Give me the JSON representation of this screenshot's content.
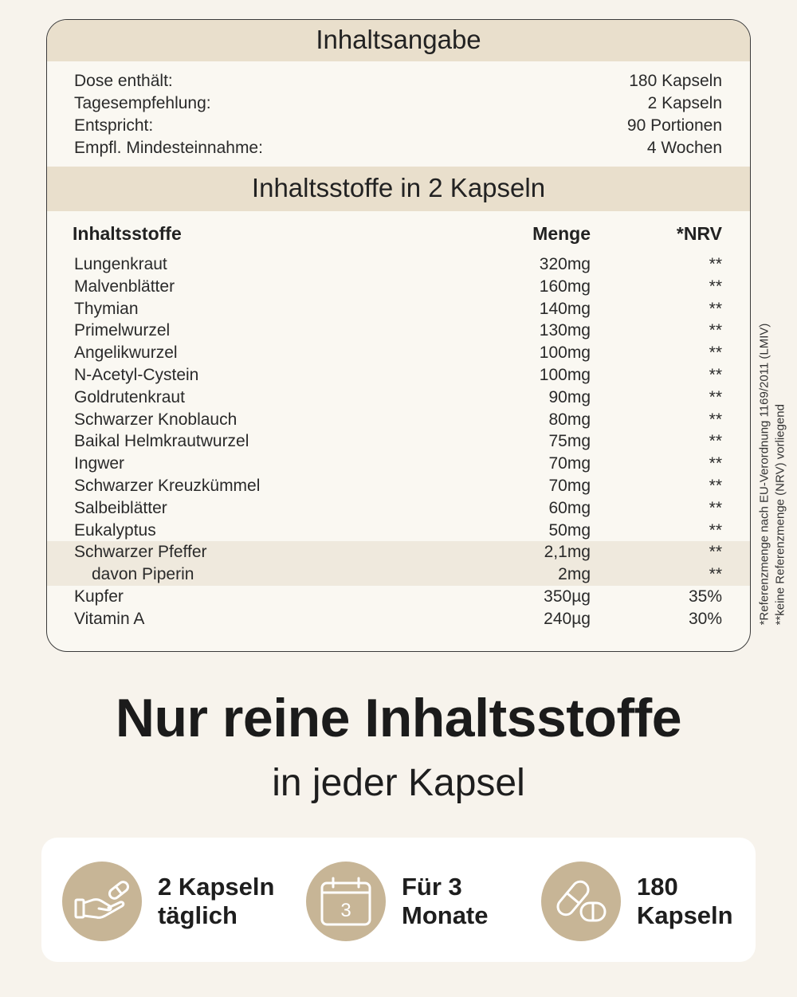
{
  "box": {
    "title": "Inhaltsangabe",
    "summary": [
      {
        "label": "Dose enthält:",
        "value": "180 Kapseln"
      },
      {
        "label": "Tagesempfehlung:",
        "value": "2 Kapseln"
      },
      {
        "label": "Entspricht:",
        "value": "90 Portionen"
      },
      {
        "label": "Empfl. Mindesteinnahme:",
        "value": "4 Wochen"
      }
    ],
    "section_title": "Inhaltsstoffe in 2 Kapseln",
    "columns": {
      "name": "Inhaltsstoffe",
      "amount": "Menge",
      "nrv": "*NRV"
    },
    "ingredients": [
      {
        "name": "Lungenkraut",
        "amount": "320mg",
        "nrv": "**"
      },
      {
        "name": "Malvenblätter",
        "amount": "160mg",
        "nrv": "**"
      },
      {
        "name": "Thymian",
        "amount": "140mg",
        "nrv": "**"
      },
      {
        "name": "Primelwurzel",
        "amount": "130mg",
        "nrv": "**"
      },
      {
        "name": "Angelikwurzel",
        "amount": "100mg",
        "nrv": "**"
      },
      {
        "name": "N-Acetyl-Cystein",
        "amount": "100mg",
        "nrv": "**"
      },
      {
        "name": "Goldrutenkraut",
        "amount": "90mg",
        "nrv": "**"
      },
      {
        "name": "Schwarzer Knoblauch",
        "amount": "80mg",
        "nrv": "**"
      },
      {
        "name": "Baikal Helmkrautwurzel",
        "amount": "75mg",
        "nrv": "**"
      },
      {
        "name": "Ingwer",
        "amount": "70mg",
        "nrv": "**"
      },
      {
        "name": "Schwarzer Kreuzkümmel",
        "amount": "70mg",
        "nrv": "**"
      },
      {
        "name": "Salbeiblätter",
        "amount": "60mg",
        "nrv": "**"
      },
      {
        "name": "Eukalyptus",
        "amount": "50mg",
        "nrv": "**"
      },
      {
        "name": "Schwarzer Pfeffer",
        "amount": "2,1mg",
        "nrv": "**"
      },
      {
        "name": "davon Piperin",
        "amount": "2mg",
        "nrv": "**"
      },
      {
        "name": "Kupfer",
        "amount": "350µg",
        "nrv": "35%"
      },
      {
        "name": "Vitamin A",
        "amount": "240µg",
        "nrv": "30%"
      }
    ]
  },
  "footnotes": {
    "nrv": "*Referenzmenge nach EU-Verordnung 1169/2011 (LMIV)",
    "none": "**keine Referenzmenge (NRV) vorliegend"
  },
  "headline": "Nur reine Inhaltsstoffe",
  "subline": "in jeder Kapsel",
  "features": [
    {
      "icon": "hand-with-capsule-icon",
      "line1": "2 Kapseln",
      "line2": "täglich"
    },
    {
      "icon": "calendar-icon",
      "calendar_number": "3",
      "line1": "Für 3",
      "line2": "Monate"
    },
    {
      "icon": "capsules-icon",
      "line1": "180",
      "line2": "Kapseln"
    }
  ],
  "colors": {
    "background": "#f7f3ec",
    "band": "#e9dfcc",
    "icon_circle": "#c7b596",
    "highlight_row": "#efe9dd"
  }
}
